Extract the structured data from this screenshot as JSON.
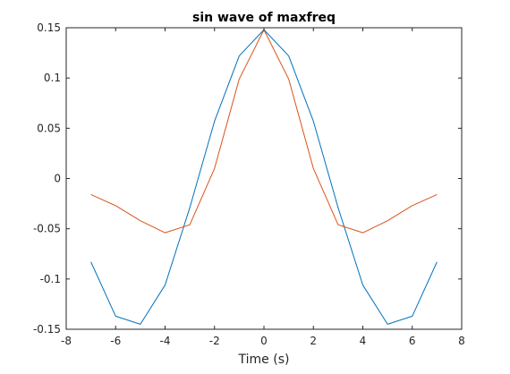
{
  "chart_data": {
    "type": "line",
    "title": "sin wave of maxfreq",
    "xlabel": "Time (s)",
    "ylabel": "",
    "xlim": [
      -8,
      8
    ],
    "ylim": [
      -0.15,
      0.15
    ],
    "xticks": [
      -8,
      -6,
      -4,
      -2,
      0,
      2,
      4,
      6,
      8
    ],
    "xtick_labels": [
      "-8",
      "-6",
      "-4",
      "-2",
      "0",
      "2",
      "4",
      "6",
      "8"
    ],
    "yticks": [
      -0.15,
      -0.1,
      -0.05,
      0,
      0.05,
      0.1,
      0.15
    ],
    "ytick_labels": [
      "-0.15",
      "-0.1",
      "-0.05",
      "0",
      "0.05",
      "0.1",
      "0.15"
    ],
    "grid": false,
    "box": true,
    "x": [
      -7,
      -6,
      -5,
      -4,
      -3,
      -2,
      -1,
      0,
      1,
      2,
      3,
      4,
      5,
      6,
      7
    ],
    "series": [
      {
        "color": "#0072BD",
        "values": [
          -0.083,
          -0.137,
          -0.145,
          -0.106,
          -0.029,
          0.057,
          0.122,
          0.148,
          0.122,
          0.057,
          -0.029,
          -0.106,
          -0.145,
          -0.137,
          -0.083
        ]
      },
      {
        "color": "#D95319",
        "values": [
          -0.016,
          -0.027,
          -0.042,
          -0.054,
          -0.046,
          0.01,
          0.099,
          0.148,
          0.099,
          0.01,
          -0.046,
          -0.054,
          -0.042,
          -0.027,
          -0.016
        ]
      }
    ]
  }
}
